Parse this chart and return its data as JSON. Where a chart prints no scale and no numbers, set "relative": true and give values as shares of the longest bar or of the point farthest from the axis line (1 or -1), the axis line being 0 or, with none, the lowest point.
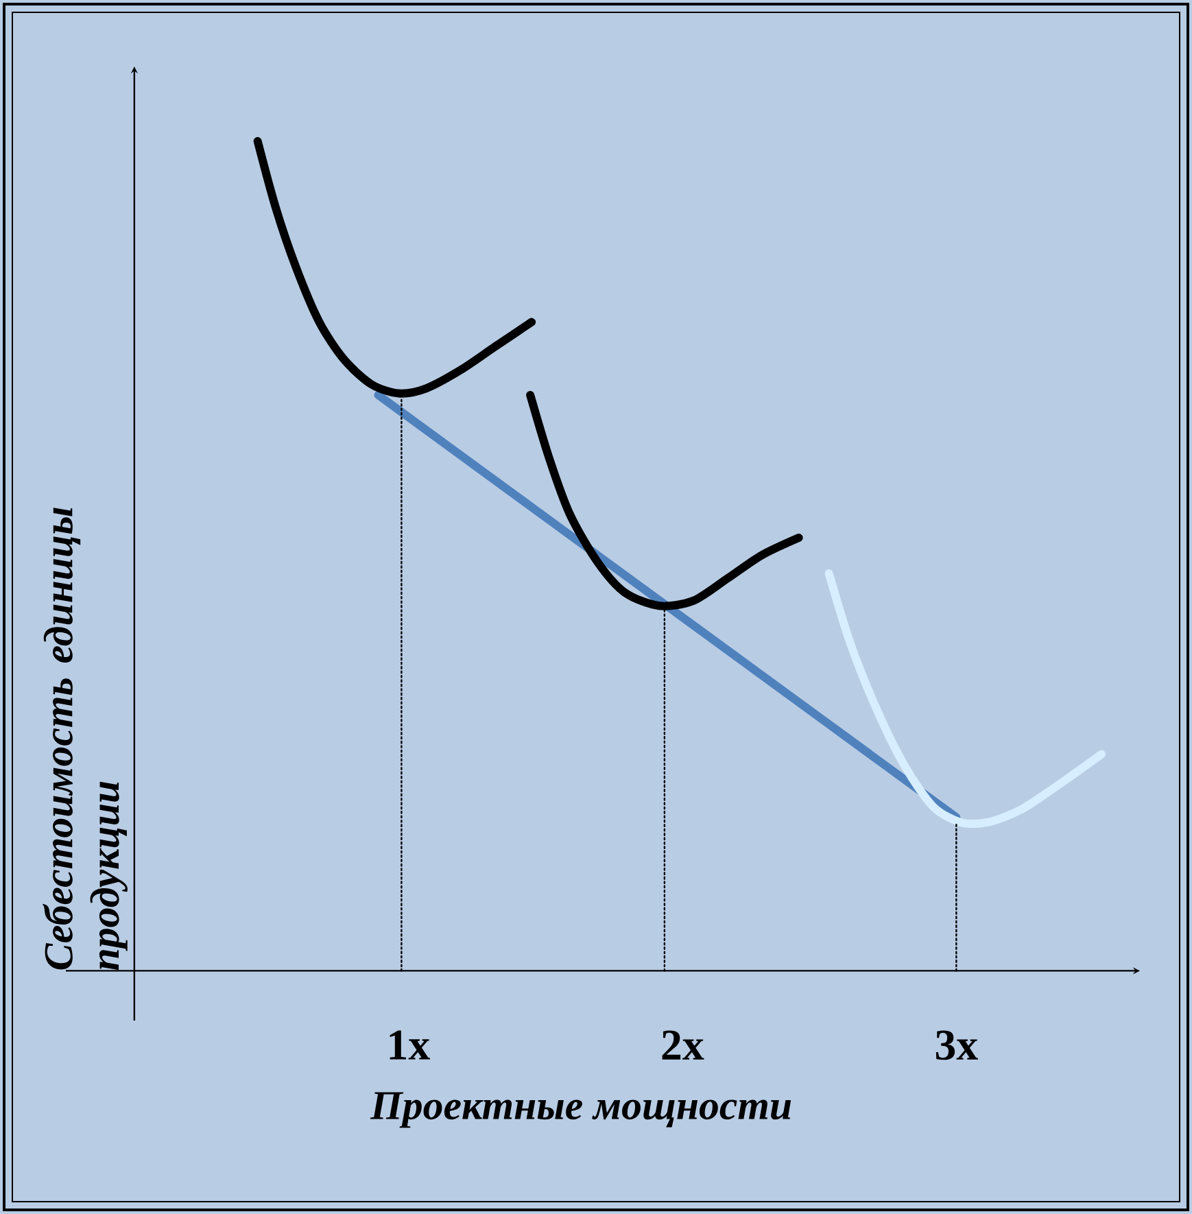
{
  "chart_data": {
    "type": "line",
    "relative": true,
    "xlabel": "Проектные мощности",
    "ylabel": "Себестоимость единицы продукции",
    "xlim": [
      -0.25,
      3.67
    ],
    "xticks": [
      {
        "value": 1,
        "label": "1x"
      },
      {
        "value": 2,
        "label": "2x"
      },
      {
        "value": 3,
        "label": "3x"
      }
    ],
    "series": [
      {
        "color": "#4f81bd",
        "x": [
          0.89,
          3.0
        ],
        "values": [
          0.694,
          0.185
        ]
      },
      {
        "color": "#000000",
        "x": [
          0.45,
          0.515,
          0.59,
          0.675,
          0.765,
          0.865,
          0.965,
          1.065,
          1.19,
          1.315,
          1.45
        ],
        "values": [
          1.0,
          0.921,
          0.848,
          0.782,
          0.737,
          0.707,
          0.696,
          0.702,
          0.724,
          0.752,
          0.782
        ]
      },
      {
        "color": "#000000",
        "x": [
          1.445,
          1.515,
          1.59,
          1.69,
          1.79,
          1.915,
          2.04,
          2.165,
          2.29,
          2.425
        ],
        "values": [
          0.694,
          0.617,
          0.55,
          0.493,
          0.456,
          0.44,
          0.446,
          0.473,
          0.501,
          0.522
        ]
      },
      {
        "color": "#d6eeff",
        "x": [
          2.535,
          2.615,
          2.715,
          2.815,
          2.915,
          3.015,
          3.115,
          3.24,
          3.39,
          3.53
        ],
        "values": [
          0.479,
          0.393,
          0.311,
          0.245,
          0.198,
          0.179,
          0.179,
          0.195,
          0.228,
          0.261
        ]
      },
      {
        "color": "#000000",
        "line_style": "dotted",
        "x": [
          0.975,
          0.975
        ],
        "values": [
          0,
          0.69
        ]
      },
      {
        "color": "#000000",
        "line_style": "dotted",
        "x": [
          1.935,
          1.935
        ],
        "values": [
          0,
          0.435
        ]
      },
      {
        "color": "#000000",
        "line_style": "dotted",
        "x": [
          3.0,
          3.0
        ],
        "values": [
          0,
          0.179
        ]
      }
    ]
  }
}
